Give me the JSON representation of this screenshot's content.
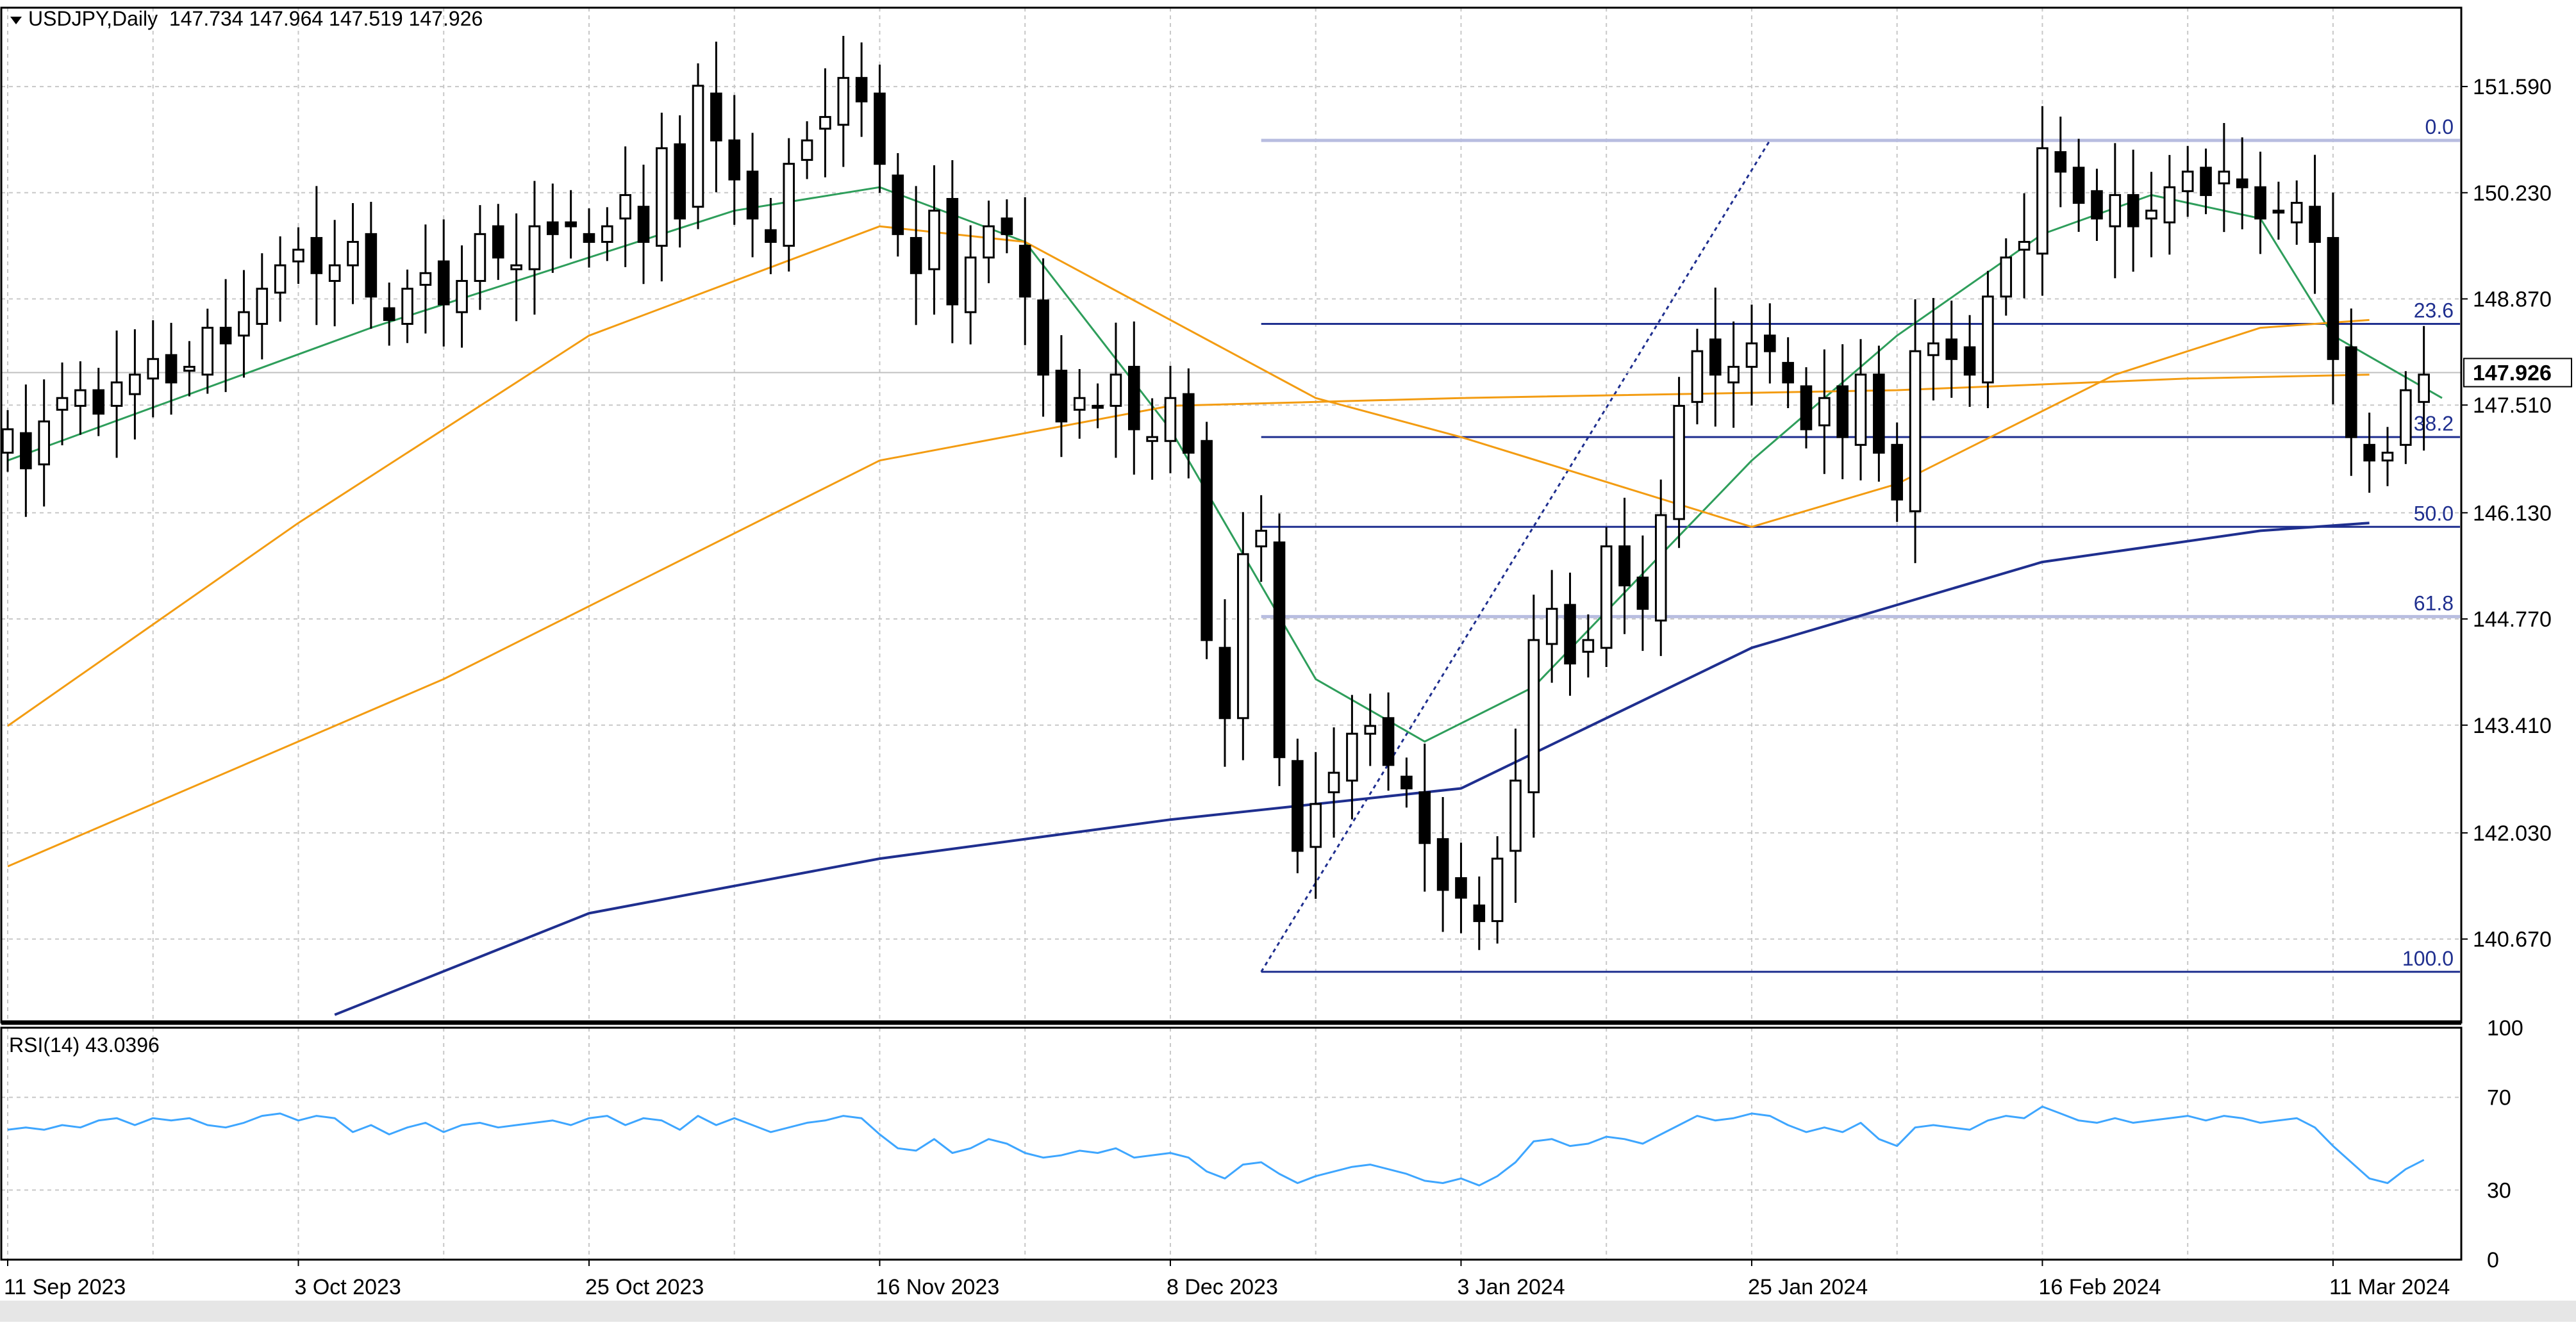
{
  "header": {
    "symbol_line": "USDJPY,Daily  147.734 147.964 147.519 147.926"
  },
  "rsi_header": "RSI(14) 43.0396",
  "colors": {
    "background": "#ffffff",
    "grid": "#c8c8c8",
    "frame": "#000000",
    "candle": "#000000",
    "ma_fast": "#2e9e5b",
    "ma_mid": "#f39c12",
    "ma_slow": "#1f2f8f",
    "fib": "#1f2f8f",
    "fib_light": "#b8bde0",
    "rsi": "#3ea6ff",
    "price_marker_bg": "#ffffff",
    "ask_line": "#c0c0c0"
  },
  "chart_data": [
    {
      "type": "candlestick",
      "instrument": "USDJPY",
      "timeframe": "Daily",
      "ohlc_last": {
        "open": 147.734,
        "high": 147.964,
        "low": 147.519,
        "close": 147.926
      },
      "ylim": [
        139.6,
        152.6
      ],
      "yticks": [
        "151.590",
        "150.230",
        "148.870",
        "147.510",
        "146.130",
        "144.770",
        "143.410",
        "142.030",
        "140.670"
      ],
      "ytick_values": [
        151.59,
        150.23,
        148.87,
        147.51,
        146.13,
        144.77,
        143.41,
        142.03,
        140.67
      ],
      "current_price_label": "147.926",
      "current_price": 147.926,
      "xticks": [
        "11 Sep 2023",
        "3 Oct 2023",
        "25 Oct 2023",
        "16 Nov 2023",
        "8 Dec 2023",
        "3 Jan 2024",
        "25 Jan 2024",
        "16 Feb 2024",
        "11 Mar 2024"
      ],
      "xtick_index": [
        0,
        16,
        32,
        48,
        64,
        80,
        96,
        112,
        128
      ],
      "bar_count": 134,
      "closes": [
        147.2,
        146.7,
        147.3,
        147.6,
        147.7,
        147.4,
        147.8,
        147.9,
        148.1,
        147.8,
        148.0,
        148.5,
        148.3,
        148.7,
        149.0,
        149.3,
        149.5,
        149.2,
        149.3,
        149.6,
        148.9,
        148.6,
        149.0,
        149.2,
        148.8,
        149.1,
        149.7,
        149.4,
        149.3,
        149.8,
        149.7,
        149.8,
        149.6,
        149.8,
        150.2,
        149.6,
        150.8,
        149.9,
        151.6,
        150.9,
        150.4,
        149.9,
        149.6,
        150.6,
        150.9,
        151.2,
        151.7,
        151.4,
        150.6,
        149.7,
        149.2,
        150.0,
        148.8,
        149.4,
        149.8,
        149.7,
        148.9,
        147.9,
        147.3,
        147.6,
        147.5,
        147.9,
        147.2,
        147.1,
        147.6,
        146.9,
        144.5,
        143.5,
        145.6,
        145.9,
        143.0,
        141.8,
        142.4,
        142.8,
        143.3,
        143.4,
        142.9,
        142.6,
        141.9,
        141.3,
        141.2,
        140.9,
        141.7,
        142.7,
        144.5,
        144.9,
        144.2,
        144.5,
        145.7,
        145.2,
        144.9,
        146.1,
        147.5,
        148.2,
        147.9,
        148.0,
        148.3,
        148.2,
        147.8,
        147.2,
        147.6,
        147.1,
        147.9,
        146.9,
        146.3,
        148.2,
        148.3,
        148.1,
        147.9,
        148.9,
        149.4,
        149.6,
        150.8,
        150.5,
        150.1,
        149.9,
        150.2,
        149.8,
        150.0,
        150.3,
        150.5,
        150.2,
        150.5,
        150.3,
        149.9,
        150.0,
        150.1,
        149.6,
        148.1,
        147.1,
        146.8,
        146.9,
        147.7,
        147.9
      ],
      "fibonacci": [
        {
          "label": "0.0",
          "price": 150.9
        },
        {
          "label": "23.6",
          "price": 148.55
        },
        {
          "label": "38.2",
          "price": 147.1
        },
        {
          "label": "50.0",
          "price": 145.95
        },
        {
          "label": "61.8",
          "price": 144.8
        },
        {
          "label": "100.0",
          "price": 140.25
        }
      ],
      "series": [
        {
          "kind": "ema-fast",
          "ranges": [
            [
              0,
              146.8
            ],
            [
              20,
              148.5
            ],
            [
              40,
              150.0
            ],
            [
              48,
              150.3
            ],
            [
              56,
              149.6
            ],
            [
              64,
              147.2
            ],
            [
              72,
              144.0
            ],
            [
              78,
              143.2
            ],
            [
              84,
              143.9
            ],
            [
              96,
              146.8
            ],
            [
              104,
              148.4
            ],
            [
              112,
              149.7
            ],
            [
              118,
              150.2
            ],
            [
              124,
              149.9
            ],
            [
              128,
              148.4
            ],
            [
              134,
              147.6
            ]
          ]
        },
        {
          "kind": "ema-mid",
          "ranges": [
            [
              0,
              143.4
            ],
            [
              16,
              146.0
            ],
            [
              32,
              148.4
            ],
            [
              48,
              149.8
            ],
            [
              56,
              149.6
            ],
            [
              72,
              147.6
            ],
            [
              80,
              147.1
            ],
            [
              96,
              145.95
            ],
            [
              104,
              146.5
            ],
            [
              116,
              147.9
            ],
            [
              124,
              148.5
            ],
            [
              130,
              148.6
            ]
          ]
        },
        {
          "kind": "ema-long",
          "ranges": [
            [
              0,
              141.6
            ],
            [
              24,
              144.0
            ],
            [
              48,
              146.8
            ],
            [
              64,
              147.5
            ],
            [
              80,
              147.6
            ],
            [
              104,
              147.7
            ],
            [
              120,
              147.85
            ],
            [
              130,
              147.9
            ]
          ]
        },
        {
          "kind": "sma-200",
          "ranges": [
            [
              18,
              139.7
            ],
            [
              32,
              141.0
            ],
            [
              48,
              141.7
            ],
            [
              64,
              142.2
            ],
            [
              80,
              142.6
            ],
            [
              96,
              144.4
            ],
            [
              112,
              145.5
            ],
            [
              124,
              145.9
            ],
            [
              130,
              146.0
            ]
          ]
        }
      ]
    },
    {
      "type": "line",
      "name": "RSI(14)",
      "ylim": [
        0,
        100
      ],
      "yticks": [
        "100",
        "70",
        "30",
        "0"
      ],
      "ytick_values": [
        100,
        70,
        30,
        0
      ],
      "values": [
        56,
        57,
        56,
        58,
        57,
        60,
        61,
        58,
        61,
        60,
        61,
        58,
        57,
        59,
        62,
        63,
        60,
        62,
        61,
        55,
        58,
        54,
        57,
        59,
        55,
        58,
        59,
        57,
        58,
        59,
        60,
        58,
        61,
        62,
        58,
        61,
        60,
        56,
        62,
        58,
        61,
        58,
        55,
        57,
        59,
        60,
        62,
        61,
        54,
        48,
        47,
        52,
        46,
        48,
        52,
        50,
        46,
        44,
        45,
        47,
        46,
        48,
        44,
        45,
        46,
        44,
        38,
        35,
        41,
        42,
        37,
        33,
        36,
        38,
        40,
        41,
        39,
        37,
        34,
        33,
        35,
        32,
        36,
        42,
        51,
        52,
        49,
        50,
        53,
        52,
        50,
        54,
        58,
        62,
        60,
        61,
        63,
        62,
        58,
        55,
        57,
        55,
        59,
        52,
        49,
        57,
        58,
        57,
        56,
        60,
        62,
        61,
        66,
        63,
        60,
        59,
        61,
        59,
        60,
        61,
        62,
        60,
        62,
        61,
        59,
        60,
        61,
        57,
        49,
        42,
        35,
        33,
        39,
        43
      ]
    }
  ]
}
